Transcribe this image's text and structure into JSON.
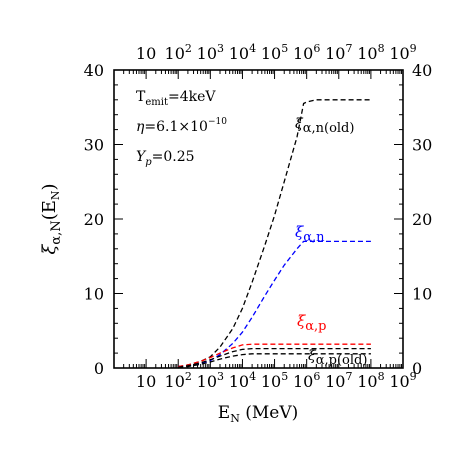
{
  "chart_data": {
    "type": "line",
    "xscale": "log",
    "xlim": [
      1,
      1000000000
    ],
    "ylim": [
      0,
      40
    ],
    "xlabel_main": "E",
    "xlabel_sub": "N",
    "xlabel_rest": " (MeV)",
    "ylabel_main": "ξ",
    "ylabel_sub": "α,N",
    "ylabel_rest": "(E",
    "ylabel_sub2": "N",
    "ylabel_close": ")",
    "x_ticks": [
      10,
      100,
      1000,
      10000,
      100000,
      1000000,
      10000000,
      100000000,
      1000000000
    ],
    "x_tick_labels": [
      {
        "base": "10",
        "exp": ""
      },
      {
        "base": "10",
        "exp": "2"
      },
      {
        "base": "10",
        "exp": "3"
      },
      {
        "base": "10",
        "exp": "4"
      },
      {
        "base": "10",
        "exp": "5"
      },
      {
        "base": "10",
        "exp": "6"
      },
      {
        "base": "10",
        "exp": "7"
      },
      {
        "base": "10",
        "exp": "8"
      },
      {
        "base": "10",
        "exp": "9"
      }
    ],
    "y_ticks": [
      0,
      10,
      20,
      30,
      40
    ],
    "y_tick_labels": [
      "0",
      "10",
      "20",
      "30",
      "40"
    ],
    "annotations": {
      "temit": {
        "main": "T",
        "sub": "emit",
        "rest": "=4keV"
      },
      "eta": {
        "main": "η",
        "rest": "=6.1×10",
        "exp": "−10"
      },
      "yp": {
        "main": "Y",
        "sub": "p",
        "rest": "=0.25"
      }
    },
    "series": [
      {
        "label_main": "ξ",
        "label_sub": "α,n(old)",
        "color": "#000000",
        "x": [
          100,
          200,
          500,
          1000,
          2000,
          5000,
          10000,
          20000,
          50000,
          100000,
          200000,
          500000,
          800000,
          1000000,
          2000000,
          5000000,
          10000000,
          100000000
        ],
        "y": [
          0.2,
          0.4,
          0.9,
          1.5,
          2.8,
          5.3,
          8.0,
          11.5,
          16.5,
          20.5,
          25.0,
          31.0,
          35.5,
          35.7,
          36.0,
          36.0,
          36.0,
          36.0
        ]
      },
      {
        "label_main": "ξ",
        "label_sub": "α,n",
        "color": "#0000ff",
        "x": [
          100,
          200,
          500,
          1000,
          2000,
          5000,
          10000,
          20000,
          50000,
          100000,
          200000,
          500000,
          800000,
          1000000,
          10000000,
          100000000
        ],
        "y": [
          0.2,
          0.3,
          0.6,
          1.0,
          1.8,
          3.3,
          4.8,
          6.8,
          9.7,
          11.8,
          13.8,
          16.0,
          17.0,
          17.0,
          17.0,
          17.0
        ]
      },
      {
        "label_main": "ξ",
        "label_sub": "α,p",
        "color": "#ff0000",
        "x": [
          100,
          200,
          500,
          1000,
          2000,
          5000,
          10000,
          20000,
          100000,
          1000000,
          10000000,
          100000000
        ],
        "y": [
          0.2,
          0.4,
          0.9,
          1.4,
          2.0,
          2.7,
          3.1,
          3.2,
          3.2,
          3.2,
          3.2,
          3.2
        ]
      },
      {
        "label_main": "ξ",
        "label_sub": "α,p(old)",
        "color": "#000000",
        "x": [
          100,
          200,
          500,
          1000,
          2000,
          5000,
          10000,
          20000,
          100000,
          1000000,
          10000000,
          100000000
        ],
        "y": [
          0.1,
          0.3,
          0.7,
          1.1,
          1.6,
          2.2,
          2.5,
          2.6,
          2.6,
          2.6,
          2.6,
          2.6
        ]
      },
      {
        "label_main": "",
        "label_sub": "",
        "color": "#000000",
        "x": [
          100,
          200,
          500,
          1000,
          2000,
          5000,
          10000,
          20000,
          100000,
          1000000,
          10000000,
          100000000
        ],
        "y": [
          0.0,
          0.2,
          0.5,
          0.8,
          1.2,
          1.6,
          1.8,
          1.9,
          1.9,
          1.9,
          1.9,
          1.9
        ]
      }
    ]
  }
}
